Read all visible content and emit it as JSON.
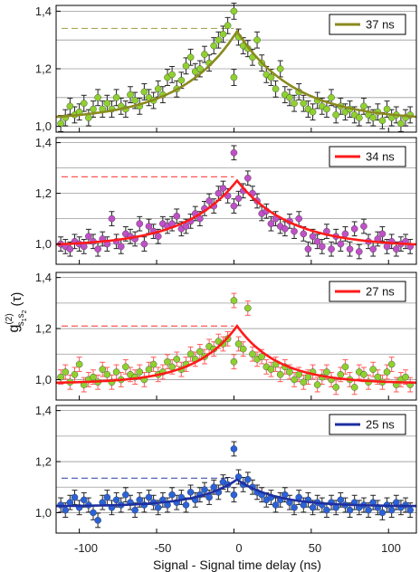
{
  "colors": {
    "olive": "#8a8a1e",
    "lime_marker": "#8fd12f",
    "red": "#ff1a1a",
    "magenta_marker": "#c050c8",
    "navy": "#1e2fa0",
    "blue_marker": "#2b62d8",
    "error_black": "#222222",
    "error_red": "#ff5a5a",
    "grid": "#9a9a9a"
  },
  "figure": {
    "xlabel": "Signal - Signal time delay (ns)",
    "ylabel_main": "g",
    "ylabel_sup": "(2)",
    "ylabel_sub": "s",
    "ylabel_sub1": "1",
    "ylabel_sub2": "s",
    "ylabel_sub3": "2",
    "ylabel_arg": "(τ)",
    "x_ticks": [
      "-100",
      "-50",
      "0",
      "50",
      "100"
    ]
  },
  "chart_data": [
    {
      "type": "scatter",
      "panel": 1,
      "legend": "37 ns",
      "fit_tau": 37,
      "peak": 1.33,
      "peak_line": 1.34,
      "baseline": 1.02,
      "xlim": [
        -115,
        118
      ],
      "ylim": [
        0.98,
        1.42
      ],
      "y_ticks": [
        "1,0",
        "1,2",
        "1,4"
      ],
      "y_tick_values": [
        1.0,
        1.2,
        1.4
      ],
      "grid_values": [
        1.0,
        1.1,
        1.2,
        1.3,
        1.4
      ],
      "marker_color": "#8fd12f",
      "fit_color": "#8a8a1e",
      "error_color": "#222222",
      "points": [
        [
          -112,
          1.01
        ],
        [
          -109,
          1.03
        ],
        [
          -106,
          1.07
        ],
        [
          -103,
          1.04
        ],
        [
          -100,
          1.05
        ],
        [
          -97,
          1.08
        ],
        [
          -94,
          1.03
        ],
        [
          -91,
          1.06
        ],
        [
          -88,
          1.1
        ],
        [
          -85,
          1.06
        ],
        [
          -82,
          1.08
        ],
        [
          -79,
          1.06
        ],
        [
          -76,
          1.1
        ],
        [
          -73,
          1.07
        ],
        [
          -70,
          1.06
        ],
        [
          -67,
          1.11
        ],
        [
          -64,
          1.09
        ],
        [
          -61,
          1.07
        ],
        [
          -58,
          1.12
        ],
        [
          -55,
          1.1
        ],
        [
          -52,
          1.09
        ],
        [
          -49,
          1.13
        ],
        [
          -46,
          1.11
        ],
        [
          -43,
          1.17
        ],
        [
          -40,
          1.18
        ],
        [
          -37,
          1.13
        ],
        [
          -34,
          1.16
        ],
        [
          -31,
          1.21
        ],
        [
          -28,
          1.24
        ],
        [
          -25,
          1.19
        ],
        [
          -22,
          1.2
        ],
        [
          -19,
          1.25
        ],
        [
          -16,
          1.22
        ],
        [
          -13,
          1.28
        ],
        [
          -10,
          1.3
        ],
        [
          -7,
          1.32
        ],
        [
          -4,
          1.35
        ],
        [
          0,
          1.4
        ],
        [
          0,
          1.17
        ],
        [
          3,
          1.31
        ],
        [
          6,
          1.28
        ],
        [
          9,
          1.27
        ],
        [
          12,
          1.24
        ],
        [
          15,
          1.3
        ],
        [
          18,
          1.22
        ],
        [
          21,
          1.18
        ],
        [
          24,
          1.17
        ],
        [
          27,
          1.13
        ],
        [
          30,
          1.2
        ],
        [
          33,
          1.11
        ],
        [
          36,
          1.1
        ],
        [
          39,
          1.08
        ],
        [
          42,
          1.12
        ],
        [
          45,
          1.08
        ],
        [
          48,
          1.06
        ],
        [
          51,
          1.05
        ],
        [
          54,
          1.09
        ],
        [
          57,
          1.07
        ],
        [
          60,
          1.06
        ],
        [
          63,
          1.1
        ],
        [
          66,
          1.04
        ],
        [
          69,
          1.07
        ],
        [
          72,
          1.05
        ],
        [
          75,
          1.06
        ],
        [
          78,
          1.04
        ],
        [
          81,
          1.03
        ],
        [
          84,
          1.07
        ],
        [
          87,
          1.04
        ],
        [
          90,
          1.03
        ],
        [
          93,
          1.05
        ],
        [
          96,
          1.02
        ],
        [
          99,
          1.06
        ],
        [
          102,
          1.03
        ],
        [
          105,
          1.04
        ],
        [
          108,
          1.01
        ],
        [
          111,
          1.03
        ],
        [
          114,
          1.04
        ]
      ]
    },
    {
      "type": "scatter",
      "panel": 2,
      "legend": "34 ns",
      "fit_tau": 34,
      "peak": 1.25,
      "peak_line": 1.265,
      "baseline": 0.99,
      "xlim": [
        -115,
        118
      ],
      "ylim": [
        0.92,
        1.42
      ],
      "y_ticks": [
        "1,0",
        "1,2",
        "1,4"
      ],
      "y_tick_values": [
        1.0,
        1.2,
        1.4
      ],
      "grid_values": [
        1.0,
        1.1,
        1.2,
        1.3,
        1.4
      ],
      "marker_color": "#c050c8",
      "fit_color": "#ff1a1a",
      "error_color": "#222222",
      "points": [
        [
          -112,
          1.0
        ],
        [
          -109,
          0.99
        ],
        [
          -106,
          0.98
        ],
        [
          -103,
          1.01
        ],
        [
          -100,
          1.0
        ],
        [
          -97,
          0.99
        ],
        [
          -94,
          1.03
        ],
        [
          -91,
          1.01
        ],
        [
          -88,
          0.98
        ],
        [
          -85,
          1.02
        ],
        [
          -82,
          1.0
        ],
        [
          -79,
          1.1
        ],
        [
          -76,
          1.01
        ],
        [
          -73,
          0.99
        ],
        [
          -70,
          1.04
        ],
        [
          -67,
          1.03
        ],
        [
          -64,
          1.02
        ],
        [
          -61,
          1.08
        ],
        [
          -58,
          1.0
        ],
        [
          -55,
          1.07
        ],
        [
          -52,
          1.05
        ],
        [
          -49,
          1.03
        ],
        [
          -46,
          1.08
        ],
        [
          -43,
          1.07
        ],
        [
          -40,
          1.08
        ],
        [
          -37,
          1.11
        ],
        [
          -34,
          1.06
        ],
        [
          -31,
          1.07
        ],
        [
          -28,
          1.09
        ],
        [
          -25,
          1.12
        ],
        [
          -22,
          1.1
        ],
        [
          -19,
          1.14
        ],
        [
          -16,
          1.17
        ],
        [
          -13,
          1.15
        ],
        [
          -10,
          1.2
        ],
        [
          -7,
          1.22
        ],
        [
          -4,
          1.19
        ],
        [
          0,
          1.36
        ],
        [
          0,
          1.15
        ],
        [
          3,
          1.18
        ],
        [
          6,
          1.21
        ],
        [
          9,
          1.26
        ],
        [
          12,
          1.2
        ],
        [
          15,
          1.17
        ],
        [
          18,
          1.12
        ],
        [
          21,
          1.13
        ],
        [
          24,
          1.08
        ],
        [
          27,
          1.1
        ],
        [
          30,
          1.07
        ],
        [
          33,
          1.06
        ],
        [
          36,
          1.09
        ],
        [
          39,
          1.05
        ],
        [
          42,
          1.1
        ],
        [
          45,
          1.04
        ],
        [
          48,
          0.98
        ],
        [
          51,
          1.03
        ],
        [
          54,
          1.01
        ],
        [
          57,
          0.99
        ],
        [
          60,
          1.05
        ],
        [
          63,
          0.98
        ],
        [
          66,
          1.03
        ],
        [
          69,
          1.0
        ],
        [
          72,
          1.04
        ],
        [
          75,
          0.98
        ],
        [
          78,
          1.06
        ],
        [
          81,
          0.97
        ],
        [
          84,
          1.07
        ],
        [
          87,
          1.01
        ],
        [
          90,
          0.98
        ],
        [
          93,
          1.02
        ],
        [
          96,
          1.04
        ],
        [
          99,
          0.99
        ],
        [
          102,
          1.01
        ],
        [
          105,
          0.98
        ],
        [
          108,
          1.0
        ],
        [
          111,
          1.01
        ],
        [
          114,
          0.99
        ]
      ]
    },
    {
      "type": "scatter",
      "panel": 3,
      "legend": "27 ns",
      "fit_tau": 27,
      "peak": 1.21,
      "peak_line": 1.21,
      "baseline": 0.985,
      "xlim": [
        -115,
        118
      ],
      "ylim": [
        0.92,
        1.42
      ],
      "y_ticks": [
        "1,0",
        "1,2",
        "1,4"
      ],
      "y_tick_values": [
        1.0,
        1.2,
        1.4
      ],
      "grid_values": [
        1.0,
        1.1,
        1.2,
        1.3,
        1.4
      ],
      "marker_color": "#8fd12f",
      "fit_color": "#ff1a1a",
      "error_color": "#ff5a5a",
      "points": [
        [
          -112,
          1.01
        ],
        [
          -109,
          1.03
        ],
        [
          -106,
          0.99
        ],
        [
          -103,
          1.02
        ],
        [
          -100,
          1.06
        ],
        [
          -97,
          0.98
        ],
        [
          -94,
          1.0
        ],
        [
          -91,
          1.01
        ],
        [
          -88,
          0.99
        ],
        [
          -85,
          1.04
        ],
        [
          -82,
          1.02
        ],
        [
          -79,
          0.99
        ],
        [
          -76,
          1.03
        ],
        [
          -73,
          1.0
        ],
        [
          -70,
          1.05
        ],
        [
          -67,
          1.02
        ],
        [
          -64,
          1.01
        ],
        [
          -61,
          1.03
        ],
        [
          -58,
          1.0
        ],
        [
          -55,
          1.04
        ],
        [
          -52,
          1.06
        ],
        [
          -49,
          1.02
        ],
        [
          -46,
          1.03
        ],
        [
          -43,
          1.07
        ],
        [
          -40,
          1.05
        ],
        [
          -37,
          1.08
        ],
        [
          -34,
          1.04
        ],
        [
          -31,
          1.06
        ],
        [
          -28,
          1.1
        ],
        [
          -25,
          1.08
        ],
        [
          -22,
          1.11
        ],
        [
          -19,
          1.09
        ],
        [
          -16,
          1.13
        ],
        [
          -13,
          1.12
        ],
        [
          -10,
          1.15
        ],
        [
          -7,
          1.14
        ],
        [
          -4,
          1.16
        ],
        [
          0,
          1.31
        ],
        [
          0,
          1.07
        ],
        [
          3,
          1.14
        ],
        [
          6,
          1.12
        ],
        [
          9,
          1.28
        ],
        [
          12,
          1.1
        ],
        [
          15,
          1.08
        ],
        [
          18,
          1.09
        ],
        [
          21,
          1.05
        ],
        [
          24,
          1.04
        ],
        [
          27,
          1.06
        ],
        [
          30,
          1.02
        ],
        [
          33,
          1.05
        ],
        [
          36,
          1.03
        ],
        [
          39,
          1.0
        ],
        [
          42,
          1.02
        ],
        [
          45,
          0.99
        ],
        [
          48,
          1.01
        ],
        [
          51,
          1.03
        ],
        [
          54,
          0.98
        ],
        [
          57,
          1.01
        ],
        [
          60,
          1.03
        ],
        [
          63,
          1.0
        ],
        [
          66,
          0.97
        ],
        [
          69,
          1.02
        ],
        [
          72,
          1.05
        ],
        [
          75,
          1.0
        ],
        [
          78,
          0.97
        ],
        [
          81,
          1.03
        ],
        [
          84,
          1.02
        ],
        [
          87,
          0.99
        ],
        [
          90,
          1.04
        ],
        [
          93,
          1.01
        ],
        [
          96,
          0.99
        ],
        [
          99,
          1.03
        ],
        [
          102,
          1.06
        ],
        [
          105,
          0.98
        ],
        [
          108,
          1.0
        ],
        [
          111,
          1.01
        ],
        [
          114,
          0.98
        ]
      ]
    },
    {
      "type": "scatter",
      "panel": 4,
      "legend": "25 ns",
      "fit_tau": 25,
      "peak": 1.13,
      "peak_line": 1.135,
      "baseline": 1.025,
      "xlim": [
        -115,
        118
      ],
      "ylim": [
        0.92,
        1.42
      ],
      "y_ticks": [
        "1,0",
        "1,2",
        "1,4"
      ],
      "y_tick_values": [
        1.0,
        1.2,
        1.4
      ],
      "grid_values": [
        1.0,
        1.1,
        1.2,
        1.3,
        1.4
      ],
      "marker_color": "#2b62d8",
      "fit_color": "#1e2fa0",
      "error_color": "#222222",
      "points": [
        [
          -112,
          1.03
        ],
        [
          -109,
          1.01
        ],
        [
          -106,
          1.04
        ],
        [
          -103,
          1.06
        ],
        [
          -100,
          1.02
        ],
        [
          -97,
          1.05
        ],
        [
          -94,
          1.03
        ],
        [
          -91,
          1.0
        ],
        [
          -88,
          0.97
        ],
        [
          -85,
          1.04
        ],
        [
          -82,
          1.06
        ],
        [
          -79,
          1.02
        ],
        [
          -76,
          1.05
        ],
        [
          -73,
          1.03
        ],
        [
          -70,
          1.07
        ],
        [
          -67,
          1.04
        ],
        [
          -64,
          1.01
        ],
        [
          -61,
          1.05
        ],
        [
          -58,
          1.03
        ],
        [
          -55,
          1.06
        ],
        [
          -52,
          1.04
        ],
        [
          -49,
          1.02
        ],
        [
          -46,
          1.05
        ],
        [
          -43,
          1.03
        ],
        [
          -40,
          1.07
        ],
        [
          -37,
          1.04
        ],
        [
          -34,
          1.06
        ],
        [
          -31,
          1.03
        ],
        [
          -28,
          1.08
        ],
        [
          -25,
          1.05
        ],
        [
          -22,
          1.07
        ],
        [
          -19,
          1.09
        ],
        [
          -16,
          1.06
        ],
        [
          -13,
          1.1
        ],
        [
          -10,
          1.08
        ],
        [
          -7,
          1.12
        ],
        [
          -4,
          1.11
        ],
        [
          0,
          1.25
        ],
        [
          0,
          1.07
        ],
        [
          3,
          1.14
        ],
        [
          6,
          1.11
        ],
        [
          9,
          1.13
        ],
        [
          12,
          1.1
        ],
        [
          15,
          1.08
        ],
        [
          18,
          1.07
        ],
        [
          21,
          1.05
        ],
        [
          24,
          1.06
        ],
        [
          27,
          1.03
        ],
        [
          30,
          1.05
        ],
        [
          33,
          1.07
        ],
        [
          36,
          1.04
        ],
        [
          39,
          1.02
        ],
        [
          42,
          1.06
        ],
        [
          45,
          1.03
        ],
        [
          48,
          1.05
        ],
        [
          51,
          1.02
        ],
        [
          54,
          1.04
        ],
        [
          57,
          1.03
        ],
        [
          60,
          1.01
        ],
        [
          63,
          1.04
        ],
        [
          66,
          1.02
        ],
        [
          69,
          1.05
        ],
        [
          72,
          1.03
        ],
        [
          75,
          1.01
        ],
        [
          78,
          1.04
        ],
        [
          81,
          1.02
        ],
        [
          84,
          1.03
        ],
        [
          87,
          1.01
        ],
        [
          90,
          1.04
        ],
        [
          93,
          1.02
        ],
        [
          96,
          1.0
        ],
        [
          99,
          1.03
        ],
        [
          102,
          1.01
        ],
        [
          105,
          1.04
        ],
        [
          108,
          1.02
        ],
        [
          111,
          1.03
        ],
        [
          114,
          1.01
        ]
      ]
    }
  ]
}
